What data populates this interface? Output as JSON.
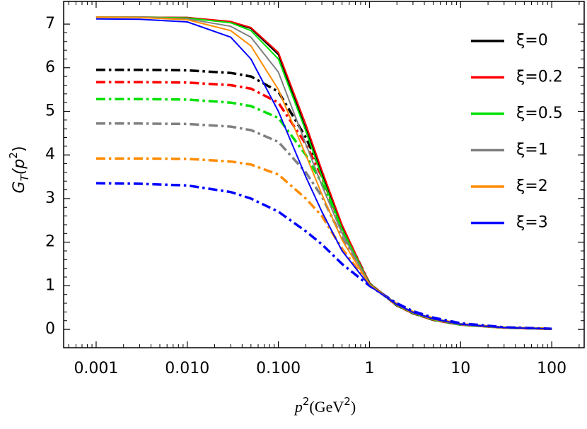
{
  "chart_data": {
    "type": "line",
    "xlabel": [
      "p",
      "2",
      "(GeV",
      "2",
      ")"
    ],
    "ylabel": [
      "G",
      "T",
      "(p",
      "2",
      ")"
    ],
    "x": [
      0.001,
      0.003,
      0.01,
      0.03,
      0.05,
      0.1,
      0.2,
      0.3,
      0.5,
      1,
      2,
      3,
      5,
      10,
      30,
      100
    ],
    "xscale": "log",
    "xlim": [
      0.00044,
      227
    ],
    "xticks": [
      {
        "value": 0.001,
        "label": "0.001"
      },
      {
        "value": 0.01,
        "label": "0.010"
      },
      {
        "value": 0.1,
        "label": "0.100"
      },
      1,
      10,
      100
    ],
    "ylim": [
      -0.42,
      7.52
    ],
    "yticks": [
      0,
      1,
      2,
      3,
      4,
      5,
      6,
      7
    ],
    "legend": "top-right",
    "series": [
      {
        "style": "dash-dot",
        "color": "#000000",
        "values": [
          5.95,
          5.95,
          5.94,
          5.88,
          5.8,
          5.45,
          4.4,
          3.6,
          2.35,
          1.05,
          0.55,
          0.37,
          0.22,
          0.11,
          0.04,
          0.012
        ]
      },
      {
        "style": "dash-dot",
        "color": "#ff0000",
        "values": [
          5.67,
          5.67,
          5.66,
          5.6,
          5.52,
          5.2,
          4.25,
          3.5,
          2.3,
          1.05,
          0.55,
          0.37,
          0.22,
          0.11,
          0.04,
          0.012
        ]
      },
      {
        "style": "dash-dot",
        "color": "#00e000",
        "values": [
          5.28,
          5.28,
          5.27,
          5.2,
          5.12,
          4.85,
          4.0,
          3.35,
          2.25,
          1.04,
          0.56,
          0.38,
          0.23,
          0.11,
          0.04,
          0.012
        ]
      },
      {
        "style": "dash-dot",
        "color": "#808080",
        "values": [
          4.72,
          4.72,
          4.71,
          4.65,
          4.57,
          4.3,
          3.6,
          3.05,
          2.1,
          1.03,
          0.57,
          0.39,
          0.24,
          0.12,
          0.04,
          0.012
        ]
      },
      {
        "style": "dash-dot",
        "color": "#ff8c00",
        "values": [
          3.92,
          3.92,
          3.91,
          3.85,
          3.78,
          3.55,
          3.0,
          2.6,
          1.85,
          1.02,
          0.58,
          0.4,
          0.25,
          0.12,
          0.04,
          0.012
        ]
      },
      {
        "style": "dash-dot",
        "color": "#0000ff",
        "values": [
          3.35,
          3.34,
          3.3,
          3.15,
          3.0,
          2.7,
          2.25,
          1.95,
          1.5,
          1.0,
          0.6,
          0.42,
          0.27,
          0.14,
          0.05,
          0.015
        ]
      },
      {
        "style": "solid",
        "name": "ξ=0",
        "color": "#000000",
        "values": [
          7.16,
          7.16,
          7.15,
          7.05,
          6.9,
          6.3,
          4.6,
          3.6,
          2.35,
          1.05,
          0.55,
          0.37,
          0.22,
          0.11,
          0.04,
          0.012
        ]
      },
      {
        "style": "solid",
        "name": "ξ=0.2",
        "color": "#ff0000",
        "values": [
          7.16,
          7.16,
          7.15,
          7.06,
          6.92,
          6.35,
          4.7,
          3.65,
          2.4,
          1.05,
          0.55,
          0.37,
          0.22,
          0.11,
          0.04,
          0.012
        ]
      },
      {
        "style": "solid",
        "name": "ξ=0.5",
        "color": "#00e000",
        "values": [
          7.16,
          7.16,
          7.14,
          7.03,
          6.85,
          6.2,
          4.55,
          3.5,
          2.3,
          1.04,
          0.55,
          0.37,
          0.22,
          0.11,
          0.04,
          0.012
        ]
      },
      {
        "style": "solid",
        "name": "ξ=1",
        "color": "#808080",
        "values": [
          7.16,
          7.16,
          7.12,
          6.95,
          6.7,
          5.9,
          4.25,
          3.3,
          2.2,
          1.03,
          0.56,
          0.38,
          0.23,
          0.11,
          0.04,
          0.012
        ]
      },
      {
        "style": "solid",
        "name": "ξ=2",
        "color": "#ff8c00",
        "values": [
          7.16,
          7.15,
          7.1,
          6.85,
          6.5,
          5.5,
          4.0,
          3.1,
          2.05,
          1.02,
          0.56,
          0.38,
          0.23,
          0.12,
          0.04,
          0.012
        ]
      },
      {
        "style": "solid",
        "name": "ξ=3",
        "color": "#0000ff",
        "values": [
          7.12,
          7.11,
          7.05,
          6.7,
          6.2,
          5.0,
          3.5,
          2.7,
          1.8,
          1.0,
          0.57,
          0.39,
          0.24,
          0.12,
          0.04,
          0.012
        ]
      }
    ]
  }
}
